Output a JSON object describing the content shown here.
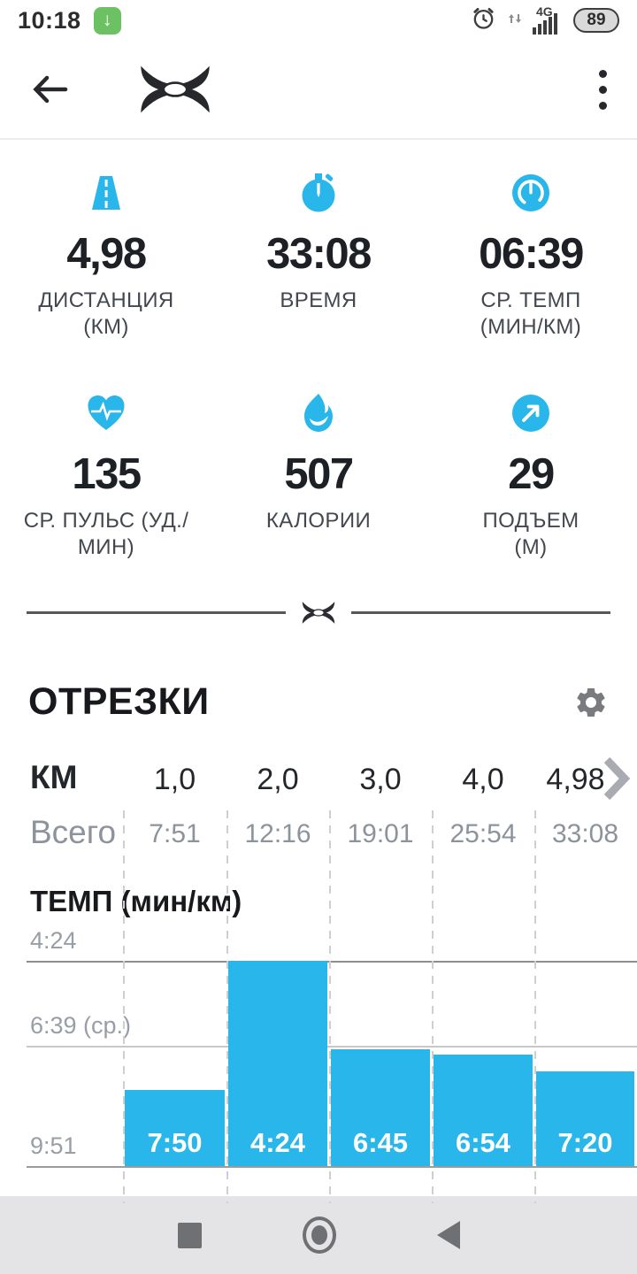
{
  "colors": {
    "accent": "#29b6ea",
    "bar": "#29b6ea",
    "download_badge": "#6cc263"
  },
  "status_bar": {
    "time": "10:18",
    "network": "4G",
    "battery": "89"
  },
  "stats": [
    {
      "icon": "road-icon",
      "value": "4,98",
      "label_lines": [
        "ДИСТАНЦИЯ",
        "(КМ)"
      ]
    },
    {
      "icon": "stopwatch-icon",
      "value": "33:08",
      "label_lines": [
        "ВРЕМЯ",
        ""
      ]
    },
    {
      "icon": "gauge-icon",
      "value": "06:39",
      "label_lines": [
        "СР. ТЕМП",
        "(МИН/КМ)"
      ]
    },
    {
      "icon": "heart-icon",
      "value": "135",
      "label_lines": [
        "СР. ПУЛЬС (УД./",
        "МИН)"
      ]
    },
    {
      "icon": "flame-icon",
      "value": "507",
      "label_lines": [
        "КАЛОРИИ",
        ""
      ]
    },
    {
      "icon": "elevation-icon",
      "value": "29",
      "label_lines": [
        "ПОДЪЕМ",
        "(М)"
      ]
    }
  ],
  "splits_section": {
    "title": "ОТРЕЗКИ",
    "unit_label": "КМ",
    "total_label": "Всего",
    "pace_title": "ТЕМП (мин/км)"
  },
  "chart_data": {
    "type": "bar",
    "title": "ТЕМП (мин/км)",
    "categories": [
      "1,0",
      "2,0",
      "3,0",
      "4,0",
      "4,98"
    ],
    "cumulative_times": [
      "7:51",
      "12:16",
      "19:01",
      "25:54",
      "33:08"
    ],
    "series": [
      {
        "name": "ТЕМП (мин/км)",
        "values": [
          "7:50",
          "4:24",
          "6:45",
          "6:54",
          "7:20"
        ],
        "values_seconds": [
          470,
          264,
          405,
          414,
          440
        ]
      }
    ],
    "yaxis": {
      "ticks": [
        "4:24",
        "6:39 (ср.)",
        "9:51"
      ],
      "ticks_seconds": [
        264,
        399,
        591
      ],
      "inverted": true,
      "average_label": "6:39 (ср.)",
      "average_seconds": 399
    },
    "bar_color": "#29b6ea",
    "grid": "horizontal-lines-and-dashed-columns",
    "legend": "none"
  }
}
